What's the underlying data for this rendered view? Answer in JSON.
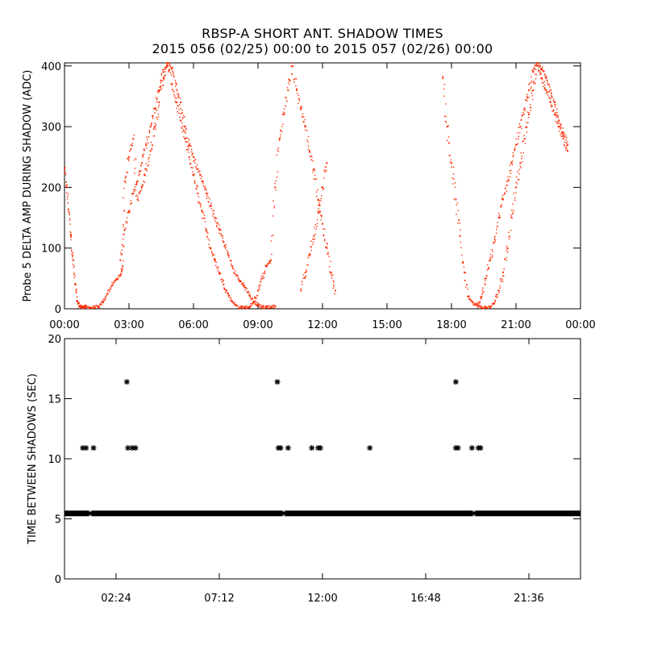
{
  "title": "RBSP-A SHORT ANT. SHADOW TIMES",
  "subtitle": "2015 056 (02/25) 00:00 to 2015 057 (02/26) 00:00",
  "colors": {
    "top_series": "#ff2a00",
    "bottom_series": "#000000",
    "axes": "#000000"
  },
  "chart_data": [
    {
      "type": "scatter",
      "ylabel": "Probe 5 DELTA AMP DURING SHADOW (ADC)",
      "xlabel": "",
      "xlim": [
        0,
        24
      ],
      "ylim": [
        0,
        405
      ],
      "x_tick_labels": [
        "00:00",
        "03:00",
        "06:00",
        "09:00",
        "12:00",
        "15:00",
        "18:00",
        "21:00",
        "00:00"
      ],
      "x_tick_values": [
        0,
        3,
        6,
        9,
        12,
        15,
        18,
        21,
        24
      ],
      "y_tick_values": [
        0,
        100,
        200,
        300,
        400
      ],
      "grid": false,
      "marker": "dot",
      "series": [
        {
          "color": "#ff2a00",
          "x": [
            0.0,
            0.1,
            0.2,
            0.3,
            0.4,
            0.5,
            0.6,
            0.7,
            0.8,
            0.9,
            1.0,
            1.2,
            1.4,
            1.6,
            1.8,
            2.0,
            2.2,
            2.4,
            2.6,
            2.7,
            2.8,
            3.0,
            3.2,
            3.4,
            3.6,
            3.8,
            4.0,
            4.2,
            4.4,
            4.6,
            4.8,
            5.0,
            5.2,
            5.4,
            5.6,
            5.8,
            6.0,
            6.2,
            6.4,
            6.6,
            6.8,
            7.0,
            7.2,
            7.4,
            7.6,
            7.8,
            8.0,
            8.2,
            8.4,
            8.6,
            8.8,
            9.0,
            9.2,
            9.4,
            9.6,
            9.8,
            10.0,
            10.2,
            10.4,
            10.6,
            10.8,
            11.0,
            11.2,
            11.4,
            11.6,
            11.8,
            12.0,
            12.2,
            12.4,
            12.6,
            17.6,
            17.8,
            18.0,
            18.2,
            18.4,
            18.6,
            18.8,
            19.0,
            19.2,
            19.4,
            19.6,
            19.8,
            20.0,
            20.2,
            20.4,
            20.6,
            20.8,
            21.0,
            21.2,
            21.4,
            21.6,
            21.8,
            22.0,
            22.2,
            22.4,
            22.6,
            22.8,
            23.0,
            23.2,
            23.4
          ],
          "y": [
            230,
            200,
            160,
            120,
            80,
            40,
            12,
            4,
            3,
            3,
            3,
            2,
            2,
            3,
            12,
            25,
            38,
            48,
            55,
            70,
            210,
            250,
            280,
            180,
            200,
            230,
            260,
            300,
            340,
            380,
            400,
            370,
            340,
            310,
            280,
            250,
            220,
            190,
            160,
            130,
            100,
            80,
            60,
            40,
            25,
            12,
            5,
            2,
            2,
            3,
            10,
            30,
            50,
            70,
            80,
            200,
            280,
            320,
            360,
            400,
            360,
            330,
            300,
            260,
            230,
            180,
            140,
            100,
            60,
            30,
            380,
            300,
            240,
            180,
            120,
            60,
            20,
            10,
            5,
            2,
            2,
            3,
            10,
            30,
            60,
            100,
            150,
            200,
            240,
            280,
            320,
            360,
            400,
            380,
            360,
            340,
            320,
            300,
            280,
            260
          ]
        },
        {
          "color": "#ff2a00",
          "x": [
            2.6,
            2.8,
            3.0,
            3.2,
            3.4,
            3.6,
            3.8,
            4.0,
            4.2,
            4.4,
            4.6,
            4.8,
            5.0,
            5.2,
            5.4,
            5.6,
            5.8,
            6.0,
            6.2,
            6.4,
            6.6,
            6.8,
            7.0,
            7.2,
            7.4,
            7.6,
            7.8,
            8.0,
            8.2,
            8.4,
            8.6,
            8.8,
            9.0,
            9.2,
            9.4,
            9.6,
            9.8,
            11.0,
            11.2,
            11.4,
            11.6,
            11.8,
            12.0,
            12.2,
            19.2,
            19.4,
            19.6,
            19.8,
            20.0,
            20.2,
            20.4,
            20.6,
            20.8,
            21.0,
            21.2,
            21.4,
            21.6,
            21.8,
            22.0,
            22.2,
            22.4,
            22.6,
            22.8,
            23.0,
            23.2,
            23.4
          ],
          "y": [
            80,
            130,
            160,
            190,
            210,
            240,
            270,
            300,
            330,
            360,
            390,
            405,
            395,
            370,
            340,
            300,
            270,
            250,
            230,
            210,
            190,
            170,
            150,
            130,
            110,
            90,
            70,
            55,
            45,
            35,
            22,
            12,
            6,
            3,
            2,
            2,
            4,
            30,
            60,
            90,
            120,
            160,
            200,
            240,
            5,
            20,
            50,
            80,
            110,
            150,
            180,
            210,
            240,
            270,
            300,
            330,
            360,
            390,
            405,
            395,
            380,
            360,
            340,
            310,
            290,
            270
          ]
        }
      ]
    },
    {
      "type": "scatter",
      "ylabel": "TIME BETWEEN SHADOWS (SEC)",
      "xlabel": "",
      "xlim": [
        0,
        24
      ],
      "ylim": [
        0,
        20
      ],
      "x_tick_labels": [
        "02:24",
        "07:12",
        "12:00",
        "16:48",
        "21:36"
      ],
      "x_tick_values": [
        2.4,
        7.2,
        12.0,
        16.8,
        21.6
      ],
      "y_tick_values": [
        0,
        5,
        10,
        15,
        20
      ],
      "grid": false,
      "marker": "asterisk",
      "series": [
        {
          "color": "#000000",
          "x": [
            0.85,
            1.0,
            1.35,
            2.95,
            3.15,
            3.3,
            9.95,
            10.05,
            10.4,
            11.5,
            11.8,
            11.9,
            14.2,
            18.2,
            18.3,
            18.95,
            19.25,
            19.35
          ],
          "y": [
            10.9,
            10.9,
            10.9,
            10.9,
            10.9,
            10.9,
            10.9,
            10.9,
            10.9,
            10.9,
            10.9,
            10.9,
            10.9,
            10.9,
            10.9,
            10.9,
            10.9,
            10.9
          ]
        },
        {
          "color": "#000000",
          "x": [
            2.9,
            9.9,
            18.2
          ],
          "y": [
            16.4,
            16.4,
            16.4
          ]
        },
        {
          "color": "#000000",
          "x_range": [
            0.0,
            24.0
          ],
          "y": 5.45,
          "sampling_interval_sec": 5.45
        }
      ]
    }
  ]
}
